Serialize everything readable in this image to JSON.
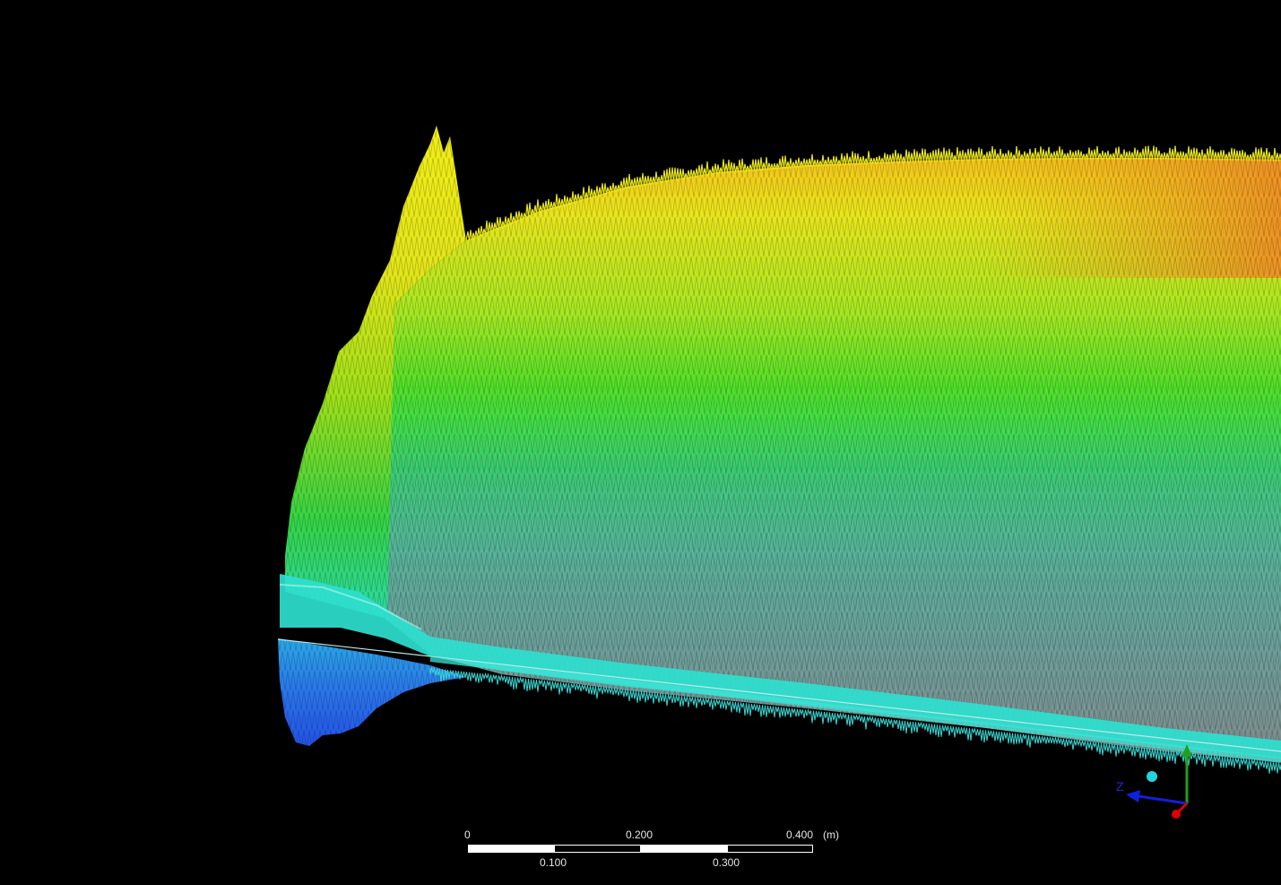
{
  "scale_bar": {
    "labels_top": [
      "0",
      "0.200",
      "0.400"
    ],
    "labels_bottom": [
      "0.100",
      "0.300"
    ],
    "unit": "(m)"
  },
  "triad": {
    "axis_label": "Z",
    "colors": {
      "x": "#e00000",
      "y": "#1fa01f",
      "z": "#1020e0",
      "iso": "#22d3e0"
    }
  },
  "colormap": [
    "#1a55e6",
    "#19b7e0",
    "#1fe0b4",
    "#1fd24a",
    "#72e21d",
    "#e7ea12",
    "#f0b510",
    "#e88a1a"
  ]
}
